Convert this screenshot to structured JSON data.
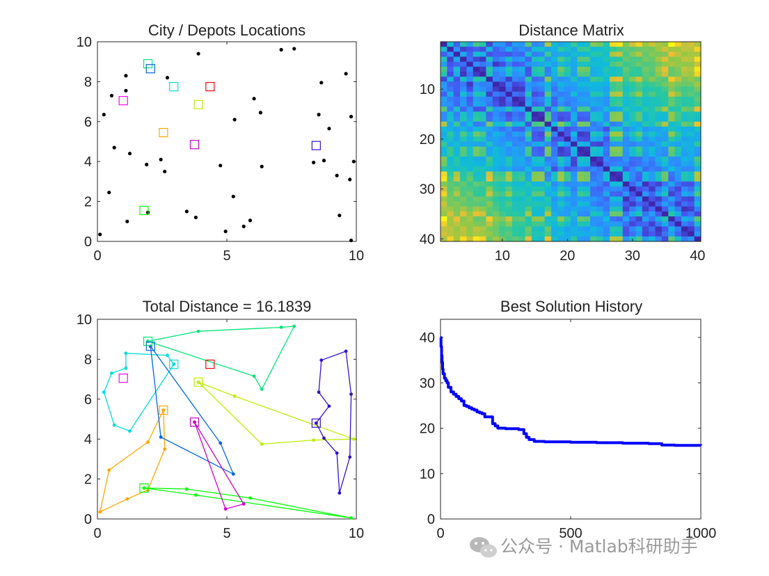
{
  "colors": {
    "depot_colors": [
      "#ff00ff",
      "#ffa500",
      "#00ff00",
      "#00dddd",
      "#00e676",
      "#0066dd",
      "#bbee00",
      "#ff0000",
      "#cc00cc",
      "#3311cc",
      "#dddd00",
      "#009999"
    ],
    "history_line": "#0000ff",
    "points": "#000000",
    "axes": "#262626",
    "watermark": "#9a9a9a"
  },
  "watermark": {
    "text": "公众号 · Matlab科研助手",
    "icon": "wechat-icon"
  },
  "chart_data": [
    {
      "type": "scatter",
      "title": "City / Depots Locations",
      "xlim": [
        0,
        10
      ],
      "ylim": [
        0,
        10
      ],
      "xticks": [
        0,
        5,
        10
      ],
      "yticks": [
        0,
        2,
        4,
        6,
        8,
        10
      ],
      "cities": [
        [
          0.1,
          0.35
        ],
        [
          0.25,
          6.35
        ],
        [
          0.45,
          2.45
        ],
        [
          0.55,
          7.3
        ],
        [
          0.65,
          4.7
        ],
        [
          1.1,
          8.3
        ],
        [
          1.1,
          7.55
        ],
        [
          1.15,
          1.0
        ],
        [
          1.25,
          4.4
        ],
        [
          1.9,
          3.85
        ],
        [
          1.95,
          1.45
        ],
        [
          2.45,
          4.1
        ],
        [
          2.6,
          3.5
        ],
        [
          2.7,
          8.2
        ],
        [
          3.45,
          1.5
        ],
        [
          3.8,
          1.2
        ],
        [
          3.9,
          9.4
        ],
        [
          4.75,
          3.8
        ],
        [
          4.95,
          0.5
        ],
        [
          5.25,
          2.25
        ],
        [
          5.3,
          6.1
        ],
        [
          5.65,
          0.75
        ],
        [
          5.9,
          1.05
        ],
        [
          6.05,
          7.15
        ],
        [
          6.3,
          6.45
        ],
        [
          6.35,
          3.75
        ],
        [
          7.1,
          9.6
        ],
        [
          7.6,
          9.65
        ],
        [
          8.35,
          3.95
        ],
        [
          8.55,
          6.35
        ],
        [
          8.65,
          7.95
        ],
        [
          8.75,
          4.05
        ],
        [
          8.95,
          5.65
        ],
        [
          9.25,
          3.3
        ],
        [
          9.35,
          1.3
        ],
        [
          9.6,
          8.4
        ],
        [
          9.8,
          6.25
        ],
        [
          9.75,
          3.1
        ],
        [
          9.9,
          4.0
        ],
        [
          9.8,
          0.05
        ]
      ],
      "depots": [
        [
          1.0,
          7.05
        ],
        [
          2.55,
          5.45
        ],
        [
          1.8,
          1.55
        ],
        [
          2.95,
          7.75
        ],
        [
          1.95,
          8.9
        ],
        [
          2.05,
          8.65
        ],
        [
          3.9,
          6.85
        ],
        [
          4.35,
          7.75
        ],
        [
          3.75,
          4.85
        ],
        [
          8.45,
          4.8
        ]
      ],
      "depot_color_index": [
        0,
        1,
        2,
        3,
        4,
        5,
        6,
        7,
        8,
        9
      ]
    },
    {
      "type": "heatmap",
      "title": "Distance Matrix",
      "size": 40,
      "xticks": [
        10,
        20,
        30,
        40
      ],
      "yticks": [
        10,
        20,
        30,
        40
      ],
      "colormap": "parula"
    },
    {
      "type": "line",
      "title": "Total Distance = 16.1839",
      "xlim": [
        0,
        10
      ],
      "ylim": [
        0,
        10
      ],
      "xticks": [
        0,
        5,
        10
      ],
      "yticks": [
        0,
        2,
        4,
        6,
        8,
        10
      ],
      "routes": [
        {
          "color_index": 3,
          "points": [
            [
              2.95,
              7.75
            ],
            [
              2.7,
              8.2
            ],
            [
              1.1,
              8.3
            ],
            [
              1.1,
              7.55
            ],
            [
              0.55,
              7.3
            ],
            [
              0.25,
              6.35
            ],
            [
              0.65,
              4.7
            ],
            [
              1.25,
              4.4
            ],
            [
              2.95,
              7.75
            ]
          ]
        },
        {
          "color_index": 1,
          "points": [
            [
              2.55,
              5.45
            ],
            [
              1.95,
              3.85
            ],
            [
              0.45,
              2.45
            ],
            [
              0.1,
              0.35
            ],
            [
              1.15,
              1.0
            ],
            [
              1.95,
              1.45
            ],
            [
              2.6,
              3.5
            ],
            [
              2.55,
              5.45
            ]
          ]
        },
        {
          "color_index": 2,
          "points": [
            [
              1.8,
              1.55
            ],
            [
              3.45,
              1.5
            ],
            [
              5.9,
              1.05
            ],
            [
              9.8,
              0.05
            ],
            [
              3.8,
              1.2
            ],
            [
              1.8,
              1.55
            ]
          ]
        },
        {
          "color_index": 4,
          "points": [
            [
              1.95,
              8.9
            ],
            [
              3.9,
              9.4
            ],
            [
              7.1,
              9.6
            ],
            [
              7.6,
              9.65
            ],
            [
              6.35,
              6.5
            ],
            [
              6.05,
              7.15
            ],
            [
              1.95,
              8.9
            ]
          ]
        },
        {
          "color_index": 5,
          "points": [
            [
              2.05,
              8.65
            ],
            [
              2.45,
              4.1
            ],
            [
              5.25,
              2.25
            ],
            [
              4.75,
              3.8
            ],
            [
              2.05,
              8.65
            ]
          ]
        },
        {
          "color_index": 6,
          "points": [
            [
              3.9,
              6.85
            ],
            [
              5.3,
              6.15
            ],
            [
              9.9,
              4.0
            ],
            [
              8.35,
              3.95
            ],
            [
              6.35,
              3.75
            ],
            [
              3.9,
              6.85
            ]
          ]
        },
        {
          "color_index": 8,
          "points": [
            [
              3.75,
              4.85
            ],
            [
              4.95,
              0.5
            ],
            [
              5.65,
              0.75
            ],
            [
              3.75,
              4.85
            ]
          ]
        },
        {
          "color_index": 9,
          "points": [
            [
              8.45,
              4.8
            ],
            [
              8.75,
              4.05
            ],
            [
              9.25,
              3.3
            ],
            [
              9.35,
              1.3
            ],
            [
              9.75,
              3.1
            ],
            [
              9.8,
              6.25
            ],
            [
              9.6,
              8.4
            ],
            [
              8.65,
              7.95
            ],
            [
              8.55,
              6.35
            ],
            [
              8.95,
              5.65
            ],
            [
              8.45,
              4.8
            ]
          ]
        }
      ]
    },
    {
      "type": "line",
      "title": "Best Solution History",
      "xlim": [
        0,
        1000
      ],
      "ylim": [
        0,
        44
      ],
      "xticks": [
        0,
        500,
        1000
      ],
      "yticks": [
        0,
        10,
        20,
        30,
        40
      ],
      "series": [
        {
          "x": [
            0,
            2,
            4,
            6,
            8,
            10,
            15,
            20,
            25,
            30,
            40,
            50,
            60,
            70,
            80,
            90,
            100,
            110,
            120,
            130,
            140,
            150,
            160,
            170,
            200,
            210,
            220,
            250,
            300,
            320,
            330,
            340,
            360,
            400,
            500,
            600,
            700,
            800,
            850,
            900,
            1000
          ],
          "y": [
            40,
            38,
            36,
            34.5,
            33,
            32,
            31,
            30.5,
            30,
            29,
            28,
            27.5,
            27,
            26.5,
            26,
            25,
            24.8,
            24.5,
            24.2,
            24,
            23.6,
            23.4,
            23.2,
            22.5,
            21,
            20.5,
            20,
            19.9,
            19.7,
            18.8,
            18,
            17.5,
            17.1,
            17,
            16.9,
            16.8,
            16.7,
            16.6,
            16.3,
            16.2,
            16.1839
          ]
        }
      ]
    }
  ]
}
